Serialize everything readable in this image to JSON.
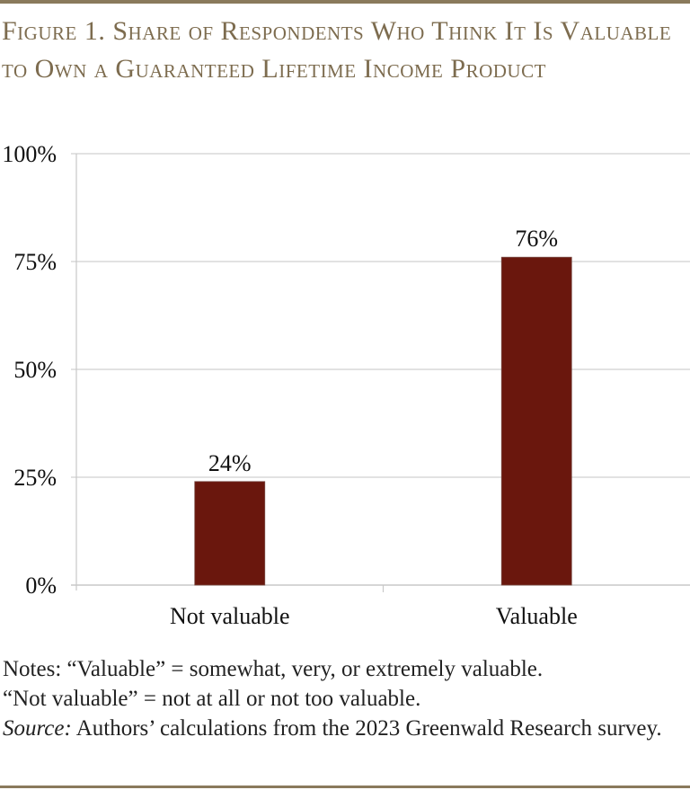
{
  "header": {
    "title": "Figure 1. Share of Respondents Who Think It Is Valuable to Own a Guaranteed Lifetime Income Product"
  },
  "chart_data": {
    "type": "bar",
    "title": "Figure 1. Share of Respondents Who Think It Is Valuable to Own a Guaranteed Lifetime Income Product",
    "xlabel": "",
    "ylabel": "",
    "categories": [
      "Not valuable",
      "Valuable"
    ],
    "values": [
      24,
      76
    ],
    "data_labels": [
      "24%",
      "76%"
    ],
    "ylim": [
      0,
      100
    ],
    "yticks": [
      0,
      25,
      50,
      75,
      100
    ],
    "ytick_labels": [
      "0%",
      "25%",
      "50%",
      "75%",
      "100%"
    ],
    "grid": true,
    "legend": "none",
    "bar_color": "#6a170d"
  },
  "notes": {
    "line1": "Notes: “Valuable” = somewhat, very, or extremely valuable.",
    "line2": "“Not valuable” = not at all or not too valuable.",
    "source_label": "Source:",
    "source_text": " Authors’ calculations from the 2023 Greenwald Research survey."
  }
}
